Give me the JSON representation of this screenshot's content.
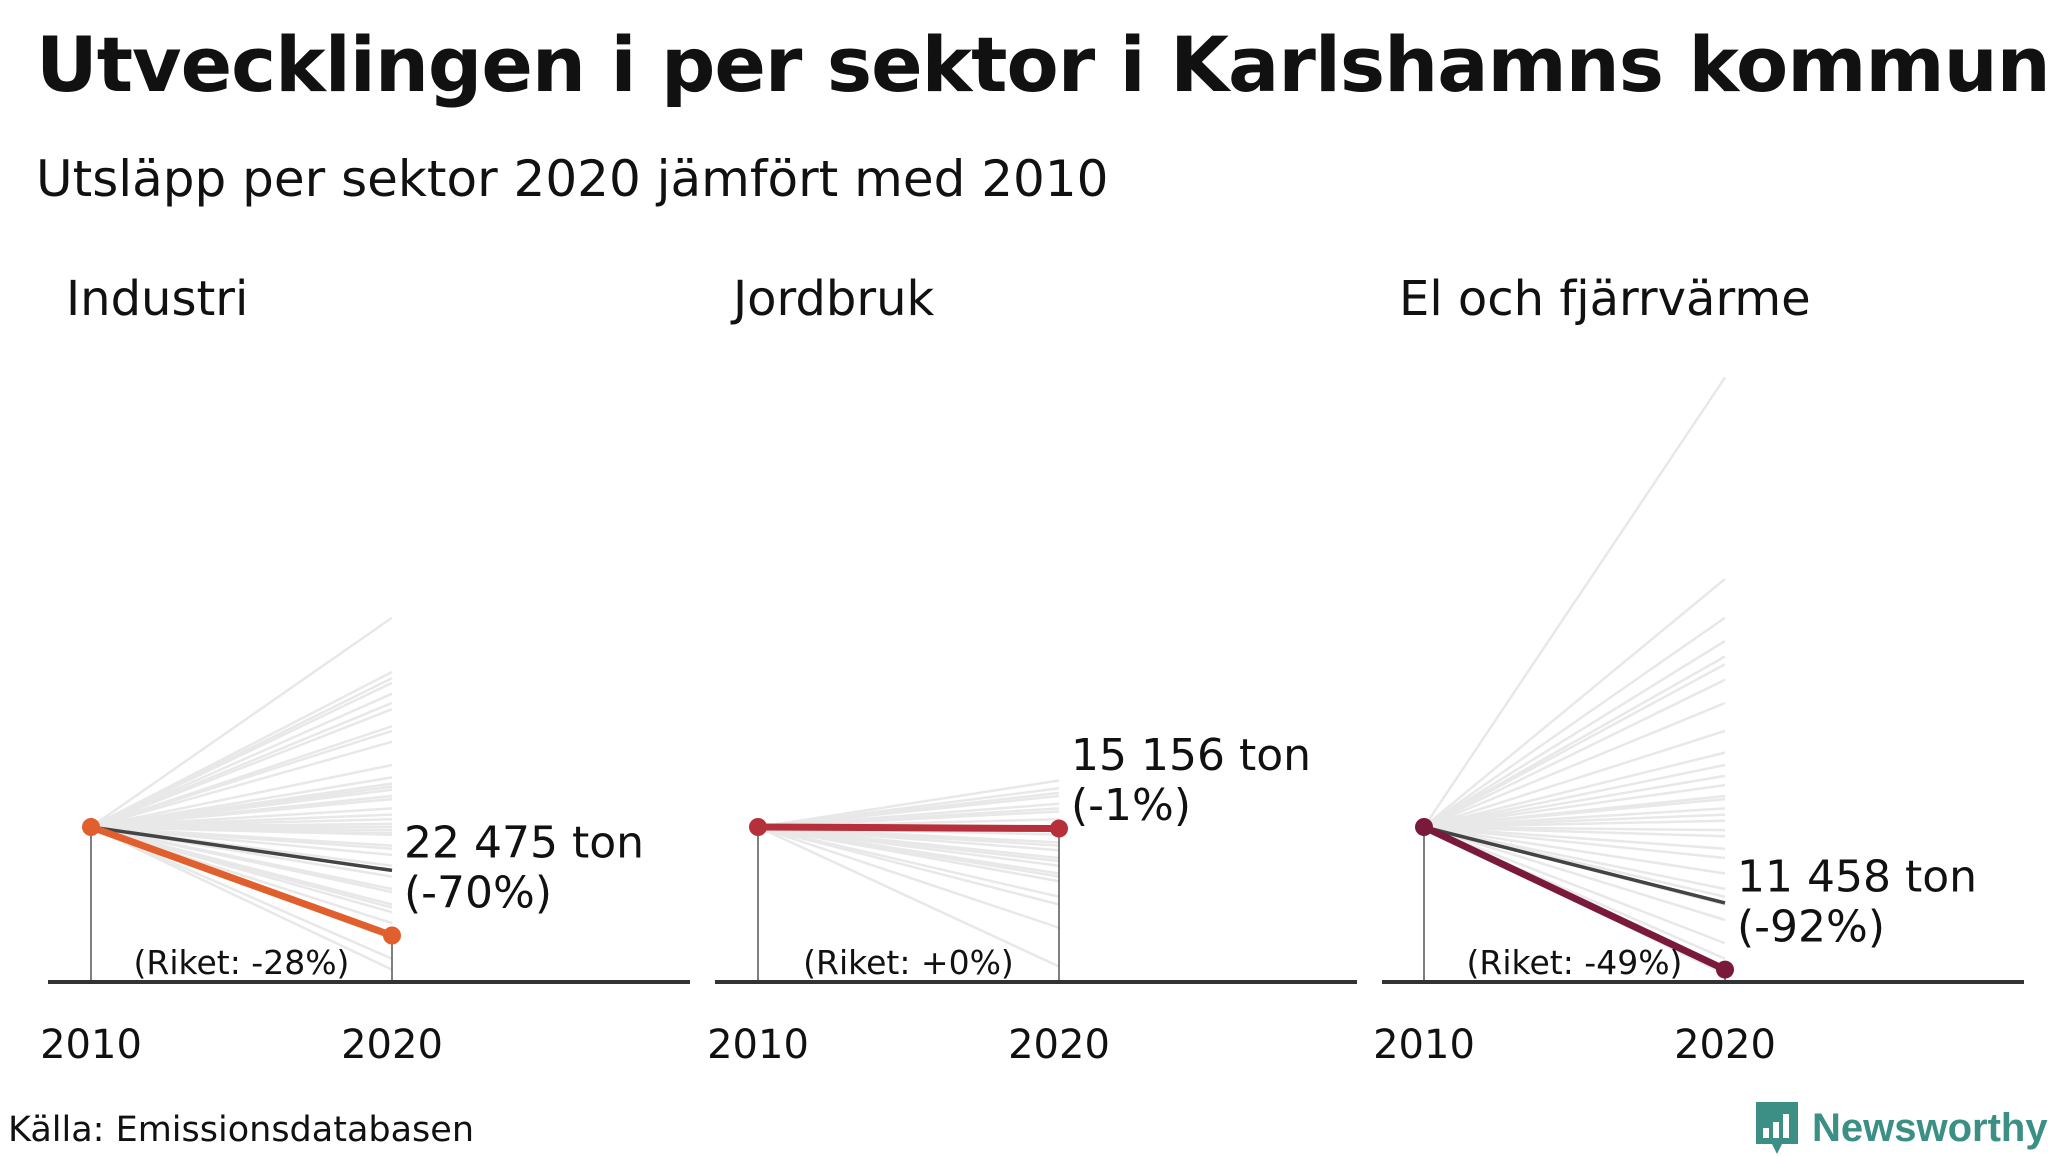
{
  "title": "Utvecklingen i per sektor i Karlshamns kommun",
  "subtitle": "Utsläpp per sektor 2020 jämfört med 2010",
  "source": "Källa: Emissionsdatabasen",
  "brand": {
    "name": "Newsworthy",
    "icon": "newsworthy-logo-icon",
    "color": "#3b8f85"
  },
  "colors": {
    "background_lines": "#e8e8e8",
    "national_line": "#444444",
    "axis": "#333333"
  },
  "chart_data": [
    {
      "type": "line",
      "sector": "Industri",
      "x": [
        2010,
        2020
      ],
      "highlight": {
        "name": "Karlshamns kommun",
        "values": [
          100,
          30
        ],
        "color": "#e05f2c"
      },
      "national": {
        "name": "Riket",
        "values": [
          100,
          72
        ]
      },
      "others_index_2020": [
        95,
        128,
        88,
        60,
        200,
        155,
        140,
        118,
        112,
        105,
        75,
        50,
        28,
        15,
        45,
        98,
        128,
        96,
        86,
        68,
        38,
        8,
        82,
        100,
        132,
        120,
        58,
        48,
        30,
        102,
        120,
        196,
        180,
        176,
        165,
        235,
        193,
        186,
        162,
        124,
        126,
        108
      ],
      "value_label": "22 475 ton",
      "change_label": "(-70%)",
      "national_label": "(Riket: -28%)"
    },
    {
      "type": "line",
      "sector": "Jordbruk",
      "x": [
        2010,
        2020
      ],
      "highlight": {
        "name": "Karlshamns kommun",
        "values": [
          100,
          99
        ],
        "color": "#b5303b"
      },
      "national": {
        "name": "Riket",
        "values": [
          100,
          100
        ]
      },
      "others_index_2020": [
        130,
        125,
        120,
        115,
        110,
        105,
        100,
        95,
        90,
        85,
        80,
        75,
        70,
        65,
        122,
        112,
        88,
        78,
        68,
        55,
        50,
        35,
        10
      ],
      "value_label": "15 156 ton",
      "change_label": "(-1%)",
      "national_label": "(Riket: +0%)"
    },
    {
      "type": "line",
      "sector": "El och fjärrvärme",
      "x": [
        2010,
        2020
      ],
      "highlight": {
        "name": "Karlshamns kommun",
        "values": [
          100,
          8
        ],
        "color": "#7a1a3a"
      },
      "national": {
        "name": "Riket",
        "values": [
          100,
          51
        ]
      },
      "others_index_2020": [
        390,
        260,
        235,
        220,
        210,
        205,
        195,
        180,
        162,
        148,
        140,
        133,
        127,
        118,
        108,
        98,
        86,
        70,
        55,
        40,
        25,
        15,
        5,
        120,
        112,
        104,
        94,
        80,
        60,
        50
      ],
      "value_label": "11 458 ton",
      "change_label": "(-92%)",
      "national_label": "(Riket: -49%)"
    }
  ]
}
